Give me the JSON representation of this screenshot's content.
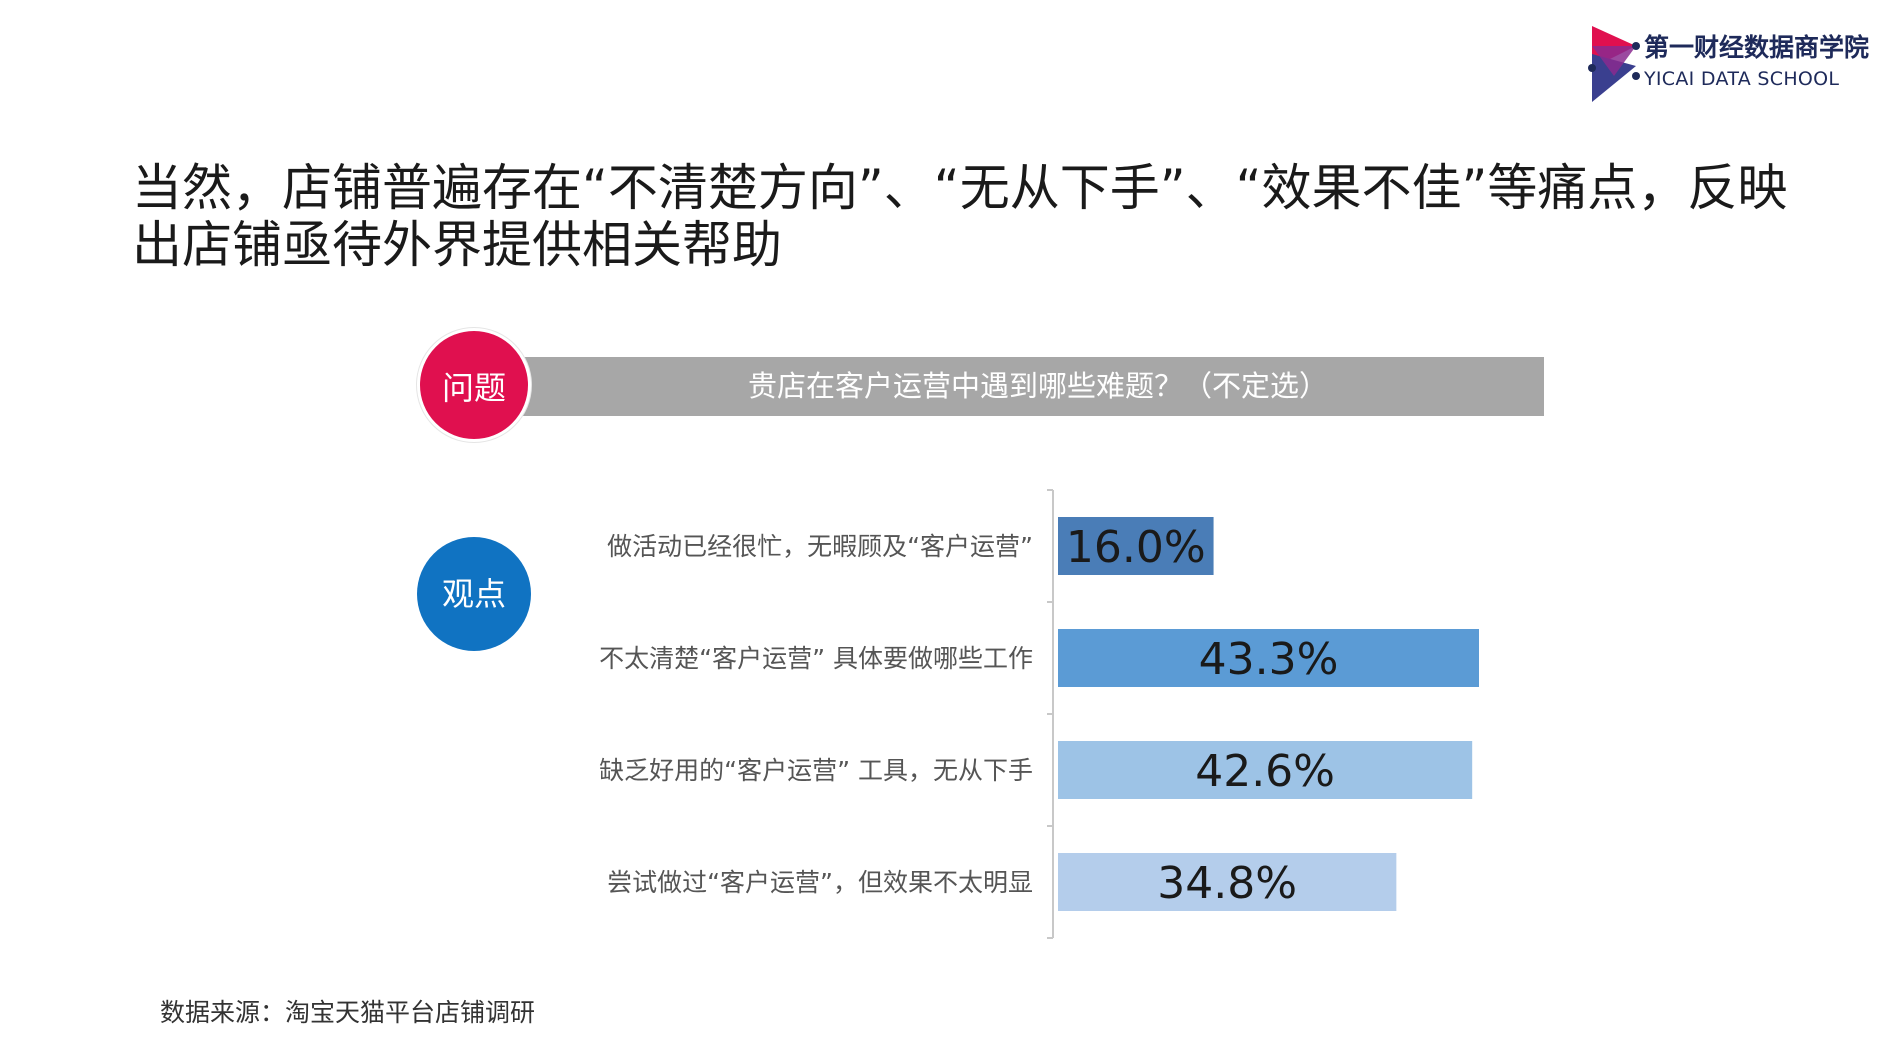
{
  "logo": {
    "name_cn": "第一财经数据商学院",
    "name_en": "YICAI DATA SCHOOL"
  },
  "headline": "当然，店铺普遍存在“不清楚方向”、“无从下手”、“效果不佳”等痛点，反映出店铺亟待外界提供相关帮助",
  "question": {
    "badge": "问题",
    "text": "贵店在客户运营中遇到哪些难题？（不定选）"
  },
  "viewpoint": {
    "badge": "观点"
  },
  "chart_data": {
    "type": "bar",
    "orientation": "horizontal",
    "categories": [
      "做活动已经很忙，无暇顾及“客户运营”",
      "不太清楚“客户运营” 具体要做哪些工作",
      "缺乏好用的“客户运营” 工具，无从下手",
      "尝试做过“客户运营”，但效果不太明显"
    ],
    "values": [
      16.0,
      43.3,
      42.6,
      34.8
    ],
    "data_labels": [
      "16.0%",
      "43.3%",
      "42.6%",
      "34.8%"
    ],
    "bar_colors": [
      "#4a7db7",
      "#5b9bd5",
      "#9dc3e6",
      "#b4cdeb"
    ],
    "unit": "%",
    "grid": false,
    "legend": "none"
  },
  "colors": {
    "question_badge": "#e0104f",
    "viewpoint_badge": "#1073c2",
    "question_bar": "#a7a7a7"
  },
  "source": "数据来源：淘宝天猫平台店铺调研"
}
